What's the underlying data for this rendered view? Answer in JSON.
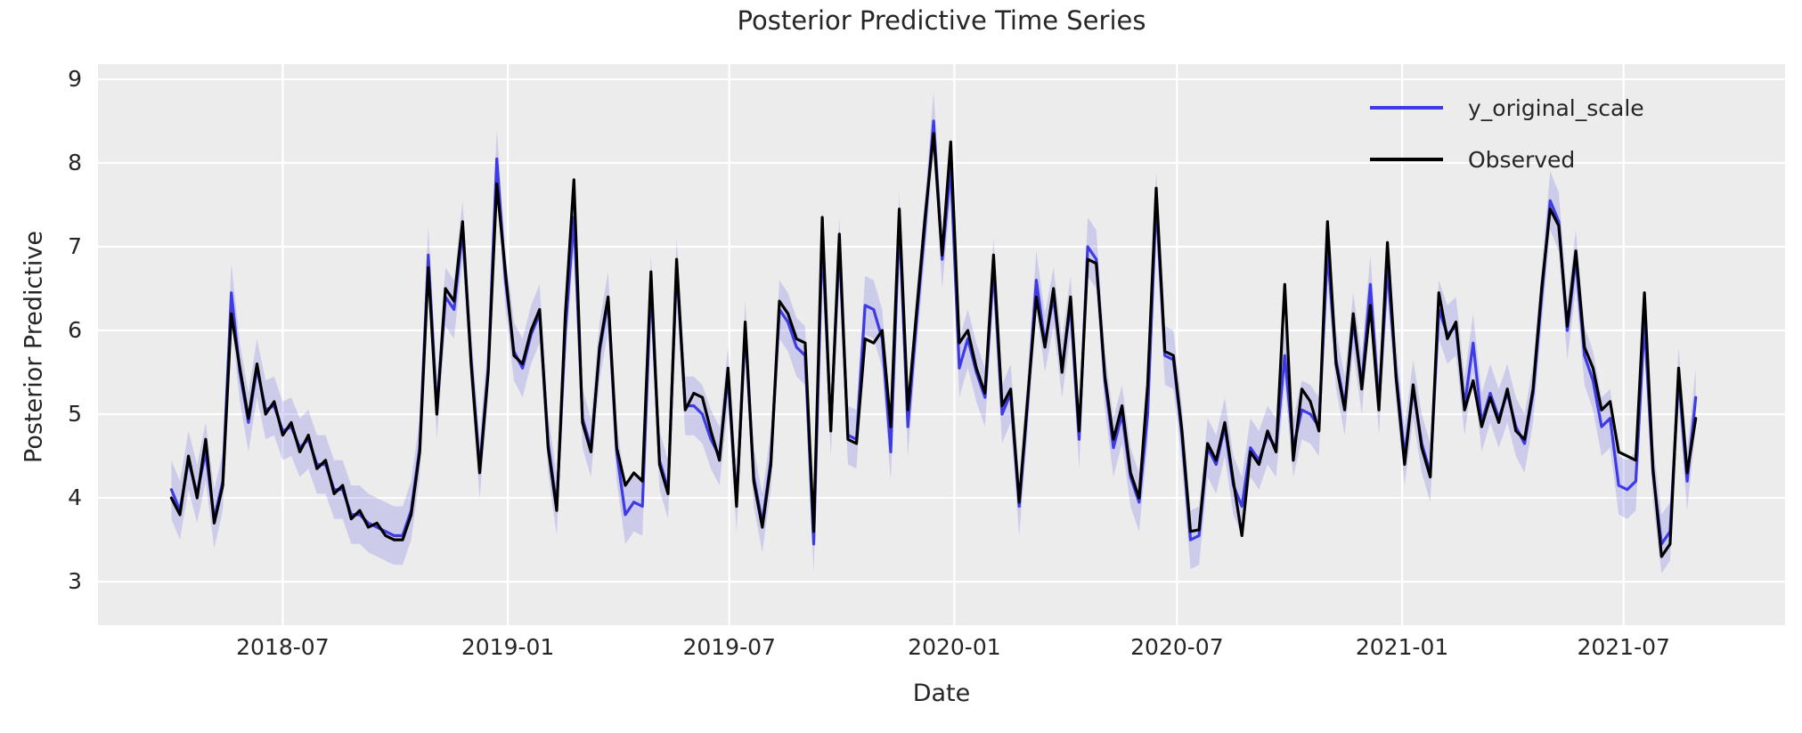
{
  "chart_data": {
    "type": "line",
    "title": "Posterior Predictive Time Series",
    "xlabel": "Date",
    "ylabel": "Posterior Predictive",
    "background_color": "#ececec",
    "grid_color": "#ffffff",
    "text_color": "#262626",
    "legend_position": "upper right",
    "x_start_date": "2018-04-01",
    "x_step_days": 7,
    "x_domain_days": [
      -60,
      1319
    ],
    "y_domain": [
      2.48,
      9.18
    ],
    "y_ticks": [
      3,
      4,
      5,
      6,
      7,
      8,
      9
    ],
    "x_ticks": [
      {
        "label": "2018-07",
        "day": 91
      },
      {
        "label": "2019-01",
        "day": 275
      },
      {
        "label": "2019-07",
        "day": 456
      },
      {
        "label": "2020-01",
        "day": 640
      },
      {
        "label": "2020-07",
        "day": 822
      },
      {
        "label": "2021-01",
        "day": 1006
      },
      {
        "label": "2021-07",
        "day": 1187
      }
    ],
    "band": {
      "around": "y_original_scale",
      "halfwidth": 0.35,
      "color": "#3e3be6",
      "opacity": 0.18
    },
    "series": [
      {
        "name": "y_original_scale",
        "color": "#3e3be6",
        "linewidth": 3.2,
        "values": [
          4.1,
          3.85,
          4.45,
          4.05,
          4.55,
          3.75,
          4.2,
          6.45,
          5.5,
          4.9,
          5.55,
          5.05,
          5.1,
          4.8,
          4.85,
          4.6,
          4.7,
          4.4,
          4.4,
          4.1,
          4.1,
          3.8,
          3.8,
          3.7,
          3.65,
          3.6,
          3.55,
          3.55,
          3.85,
          4.6,
          6.9,
          5.05,
          6.4,
          6.25,
          7.2,
          5.65,
          4.35,
          5.55,
          8.05,
          6.6,
          5.75,
          5.55,
          5.95,
          6.2,
          4.65,
          3.9,
          6.0,
          7.35,
          4.95,
          4.6,
          5.75,
          6.35,
          4.55,
          3.8,
          3.95,
          3.9,
          6.55,
          4.45,
          4.1,
          6.75,
          5.1,
          5.1,
          5.0,
          4.7,
          4.5,
          5.45,
          3.95,
          6.0,
          4.25,
          3.7,
          4.45,
          6.25,
          6.1,
          5.8,
          5.7,
          3.45,
          7.1,
          4.85,
          7.0,
          4.75,
          4.7,
          6.3,
          6.25,
          5.9,
          4.55,
          7.3,
          4.85,
          6.1,
          7.25,
          8.5,
          6.85,
          7.95,
          5.55,
          5.9,
          5.5,
          5.2,
          6.75,
          5.0,
          5.25,
          3.9,
          5.15,
          6.6,
          5.85,
          6.4,
          5.55,
          6.3,
          4.7,
          7.0,
          6.85,
          5.4,
          4.6,
          5.0,
          4.25,
          3.95,
          5.0,
          7.55,
          5.7,
          5.65,
          4.75,
          3.5,
          3.55,
          4.6,
          4.4,
          4.85,
          4.15,
          3.9,
          4.6,
          4.45,
          4.75,
          4.6,
          5.7,
          4.6,
          5.05,
          5.0,
          4.85,
          6.95,
          5.65,
          5.1,
          6.1,
          5.35,
          6.55,
          5.1,
          6.75,
          5.5,
          4.5,
          5.3,
          4.65,
          4.3,
          6.25,
          5.95,
          6.05,
          5.1,
          5.85,
          4.9,
          5.25,
          4.95,
          5.25,
          4.85,
          4.65,
          5.25,
          6.4,
          7.55,
          7.3,
          6.0,
          6.85,
          5.7,
          5.4,
          4.85,
          4.95,
          4.15,
          4.1,
          4.2,
          6.1,
          4.3,
          3.45,
          3.6,
          5.45,
          4.2,
          5.2
        ]
      },
      {
        "name": "Observed",
        "color": "#000000",
        "linewidth": 3.2,
        "values": [
          4.0,
          3.8,
          4.5,
          4.0,
          4.7,
          3.7,
          4.15,
          6.2,
          5.55,
          4.95,
          5.6,
          5.0,
          5.15,
          4.75,
          4.9,
          4.55,
          4.75,
          4.35,
          4.45,
          4.05,
          4.15,
          3.75,
          3.85,
          3.65,
          3.7,
          3.55,
          3.5,
          3.5,
          3.8,
          4.55,
          6.75,
          5.0,
          6.5,
          6.35,
          7.3,
          5.6,
          4.3,
          5.5,
          7.75,
          6.7,
          5.7,
          5.6,
          6.0,
          6.25,
          4.6,
          3.85,
          6.2,
          7.8,
          4.9,
          4.55,
          5.8,
          6.4,
          4.6,
          4.15,
          4.3,
          4.2,
          6.7,
          4.4,
          4.05,
          6.85,
          5.05,
          5.25,
          5.2,
          4.8,
          4.45,
          5.55,
          3.9,
          6.1,
          4.2,
          3.65,
          4.4,
          6.35,
          6.2,
          5.9,
          5.85,
          3.6,
          7.35,
          4.8,
          7.15,
          4.7,
          4.65,
          5.9,
          5.85,
          6.0,
          4.85,
          7.45,
          5.05,
          6.2,
          7.35,
          8.35,
          6.9,
          8.25,
          5.85,
          6.0,
          5.55,
          5.25,
          6.9,
          5.1,
          5.3,
          3.95,
          5.2,
          6.4,
          5.8,
          6.5,
          5.5,
          6.4,
          4.8,
          6.85,
          6.8,
          5.45,
          4.7,
          5.1,
          4.3,
          4.0,
          5.35,
          7.7,
          5.75,
          5.7,
          4.8,
          3.6,
          3.62,
          4.65,
          4.45,
          4.9,
          4.2,
          3.55,
          4.55,
          4.4,
          4.8,
          4.55,
          6.55,
          4.45,
          5.3,
          5.15,
          4.8,
          7.3,
          5.6,
          5.05,
          6.2,
          5.3,
          6.3,
          5.05,
          7.05,
          5.45,
          4.4,
          5.35,
          4.6,
          4.25,
          6.45,
          5.9,
          6.1,
          5.05,
          5.4,
          4.85,
          5.2,
          4.9,
          5.3,
          4.8,
          4.7,
          5.3,
          6.5,
          7.45,
          7.25,
          6.05,
          6.95,
          5.8,
          5.55,
          5.05,
          5.15,
          4.55,
          4.5,
          4.45,
          6.45,
          4.35,
          3.3,
          3.45,
          5.55,
          4.3,
          4.95
        ]
      }
    ]
  }
}
